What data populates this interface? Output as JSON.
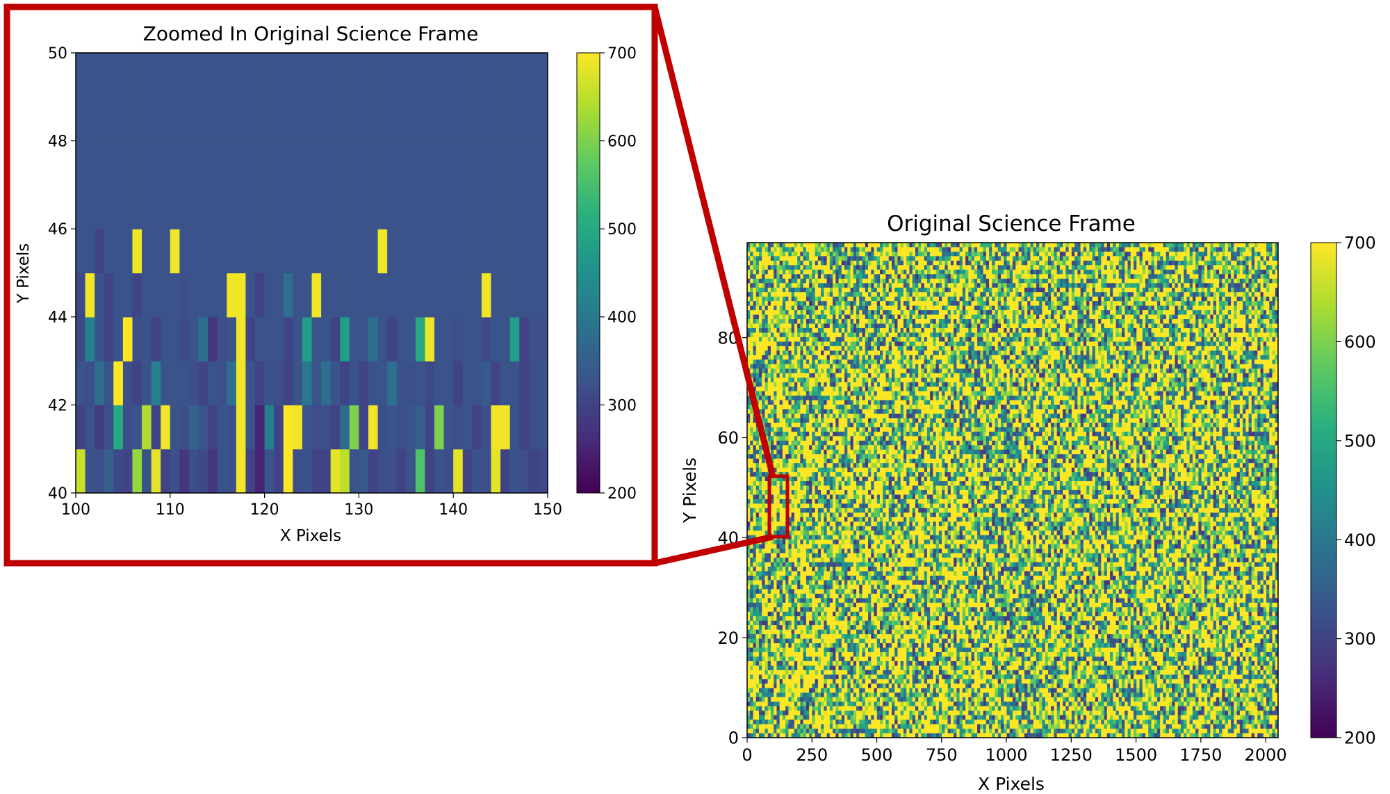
{
  "chart_data": [
    {
      "type": "heatmap",
      "title": "Zoomed In Original Science Frame",
      "xlabel": "X Pixels",
      "ylabel": "Y Pixels",
      "xlim": [
        100,
        150
      ],
      "ylim": [
        40,
        50
      ],
      "xticks": [
        100,
        110,
        120,
        130,
        140,
        150
      ],
      "yticks": [
        40,
        42,
        44,
        46,
        48,
        50
      ],
      "colorbar": {
        "range": [
          200,
          700
        ],
        "ticks": [
          200,
          300,
          400,
          500,
          600,
          700
        ]
      },
      "colormap": "viridis",
      "grid": false,
      "values": [
        [
          660,
          330,
          320,
          350,
          310,
          300,
          620,
          330,
          680,
          300,
          320,
          280,
          320,
          310,
          280,
          330,
          320,
          690,
          300,
          250,
          330,
          300,
          700,
          320,
          330,
          300,
          300,
          680,
          650,
          330,
          340,
          300,
          320,
          320,
          300,
          330,
          560,
          300,
          330,
          320,
          680,
          300,
          330,
          320,
          680,
          300,
          330,
          320,
          300,
          310
        ],
        [
          300,
          330,
          290,
          320,
          500,
          320,
          330,
          640,
          300,
          690,
          330,
          320,
          360,
          330,
          300,
          330,
          320,
          690,
          330,
          250,
          420,
          300,
          700,
          690,
          330,
          320,
          320,
          300,
          370,
          600,
          300,
          690,
          320,
          330,
          320,
          330,
          350,
          300,
          600,
          330,
          320,
          330,
          300,
          320,
          690,
          690,
          330,
          300,
          320,
          330
        ],
        [
          330,
          320,
          380,
          330,
          700,
          320,
          300,
          330,
          420,
          330,
          330,
          330,
          320,
          300,
          330,
          320,
          380,
          690,
          330,
          300,
          330,
          320,
          300,
          330,
          400,
          330,
          380,
          330,
          300,
          330,
          300,
          330,
          330,
          380,
          330,
          320,
          330,
          310,
          330,
          330,
          300,
          330,
          330,
          340,
          300,
          330,
          330,
          300,
          320,
          330
        ],
        [
          310,
          420,
          330,
          300,
          330,
          700,
          320,
          330,
          300,
          330,
          330,
          310,
          330,
          380,
          280,
          320,
          330,
          690,
          300,
          330,
          330,
          330,
          300,
          330,
          480,
          330,
          330,
          300,
          480,
          330,
          330,
          380,
          330,
          300,
          330,
          330,
          500,
          690,
          330,
          330,
          320,
          330,
          330,
          310,
          330,
          330,
          480,
          300,
          330,
          320
        ],
        [
          310,
          690,
          330,
          300,
          330,
          330,
          300,
          330,
          330,
          330,
          330,
          320,
          330,
          330,
          330,
          330,
          690,
          690,
          330,
          300,
          330,
          330,
          380,
          330,
          330,
          690,
          330,
          330,
          330,
          330,
          330,
          330,
          330,
          330,
          330,
          330,
          330,
          330,
          330,
          330,
          330,
          330,
          330,
          690,
          330,
          330,
          330,
          330,
          330,
          330
        ],
        [
          330,
          330,
          300,
          330,
          330,
          330,
          690,
          330,
          330,
          330,
          690,
          330,
          330,
          330,
          330,
          330,
          330,
          330,
          330,
          330,
          330,
          330,
          330,
          330,
          330,
          330,
          330,
          330,
          330,
          330,
          330,
          330,
          690,
          330,
          330,
          330,
          330,
          330,
          330,
          330,
          330,
          330,
          330,
          330,
          330,
          330,
          330,
          330,
          330,
          330
        ],
        [
          330,
          330,
          330,
          330,
          330,
          330,
          330,
          330,
          330,
          330,
          330,
          330,
          330,
          330,
          330,
          330,
          330,
          330,
          330,
          330,
          330,
          330,
          330,
          330,
          330,
          330,
          330,
          330,
          330,
          330,
          330,
          330,
          330,
          330,
          330,
          330,
          330,
          330,
          330,
          330,
          330,
          330,
          330,
          330,
          330,
          330,
          330,
          330,
          330,
          330
        ],
        [
          330,
          330,
          330,
          330,
          330,
          330,
          330,
          330,
          330,
          330,
          330,
          330,
          330,
          330,
          330,
          330,
          330,
          330,
          330,
          330,
          330,
          330,
          330,
          330,
          330,
          330,
          330,
          330,
          330,
          330,
          330,
          330,
          330,
          330,
          330,
          330,
          330,
          330,
          330,
          330,
          330,
          330,
          330,
          330,
          330,
          330,
          330,
          330,
          330,
          330
        ],
        [
          330,
          330,
          330,
          330,
          330,
          330,
          330,
          330,
          330,
          330,
          330,
          330,
          330,
          330,
          330,
          330,
          330,
          330,
          330,
          330,
          330,
          330,
          330,
          330,
          330,
          330,
          330,
          330,
          330,
          330,
          330,
          330,
          330,
          330,
          330,
          330,
          330,
          330,
          330,
          330,
          330,
          330,
          330,
          330,
          330,
          330,
          330,
          330,
          330,
          330
        ],
        [
          330,
          330,
          330,
          330,
          330,
          330,
          330,
          330,
          330,
          330,
          330,
          330,
          330,
          330,
          330,
          330,
          330,
          330,
          330,
          330,
          330,
          330,
          330,
          330,
          330,
          330,
          330,
          330,
          330,
          330,
          330,
          330,
          330,
          330,
          330,
          330,
          330,
          330,
          330,
          330,
          330,
          330,
          330,
          330,
          330,
          330,
          330,
          330,
          330,
          330
        ]
      ]
    },
    {
      "type": "heatmap",
      "title": "Original Science Frame",
      "xlabel": "X Pixels",
      "ylabel": "Y Pixels",
      "xlim": [
        0,
        2048
      ],
      "ylim": [
        0,
        99
      ],
      "xticks": [
        0,
        250,
        500,
        750,
        1000,
        1250,
        1500,
        1750,
        2000
      ],
      "yticks": [
        0,
        20,
        40,
        60,
        80
      ],
      "colorbar": {
        "range": [
          200,
          700
        ],
        "ticks": [
          200,
          300,
          400,
          500,
          600,
          700
        ]
      },
      "colormap": "viridis",
      "grid": false,
      "zoom_region": {
        "x": [
          100,
          150
        ],
        "y": [
          40,
          50
        ]
      }
    }
  ],
  "colors": {
    "highlight": "#c00000",
    "frame": "#000000"
  }
}
